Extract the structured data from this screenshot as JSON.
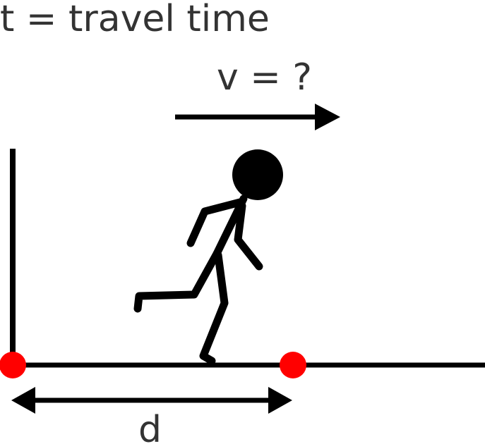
{
  "labels": {
    "time": "t = travel time",
    "velocity": "v = ?",
    "distance": "d"
  },
  "colors": {
    "stroke": "#000000",
    "text": "#333333",
    "marker": "#ff0000",
    "background": "#ffffff"
  },
  "icons": {
    "figure": "running-stick-figure",
    "velocity_arrow": "right-arrow",
    "distance_arrow": "double-headed-arrow"
  }
}
